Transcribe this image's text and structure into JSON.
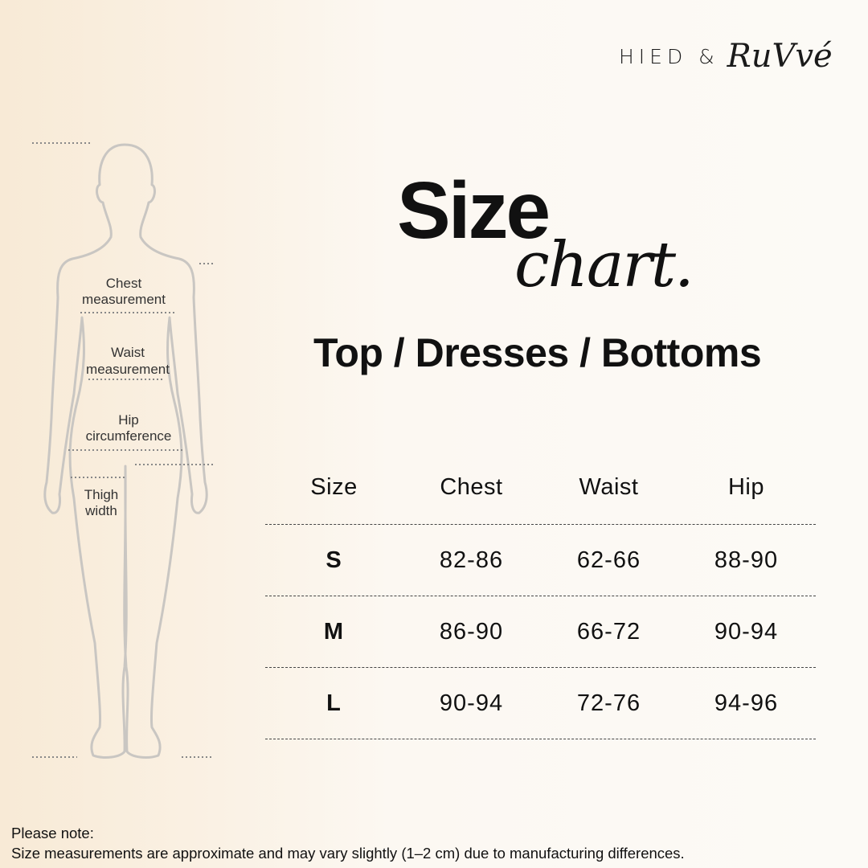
{
  "brand": {
    "left": "HIED &",
    "script": "RuVvé"
  },
  "title": {
    "main": "Size",
    "script": "chart.",
    "subtitle": "Top / Dresses / Bottoms"
  },
  "figure": {
    "labels": {
      "chest": [
        "Chest",
        "measurement"
      ],
      "waist": [
        "Waist",
        "measurement"
      ],
      "hip": [
        "Hip",
        "circumference"
      ],
      "thigh": [
        "Thigh",
        "width"
      ]
    }
  },
  "table": {
    "headers": [
      "Size",
      "Chest",
      "Waist",
      "Hip"
    ],
    "rows": [
      [
        "S",
        "82-86",
        "62-66",
        "88-90"
      ],
      [
        "M",
        "86-90",
        "66-72",
        "90-94"
      ],
      [
        "L",
        "90-94",
        "72-76",
        "94-96"
      ]
    ]
  },
  "note": {
    "line1": "Please note:",
    "line2": "Size measurements are approximate and may vary slightly (1–2 cm) due to manufacturing differences."
  }
}
